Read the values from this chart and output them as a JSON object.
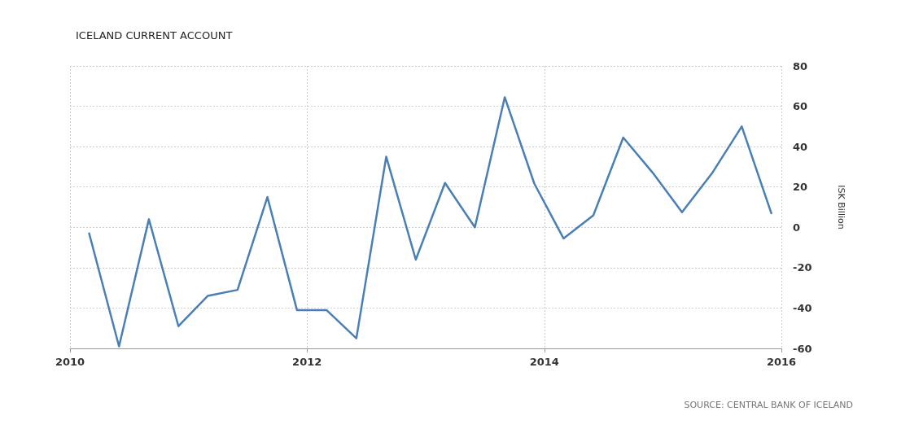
{
  "chart_data": {
    "type": "line",
    "title": "ICELAND CURRENT ACCOUNT",
    "ylabel": "ISK Billion",
    "annotations": [
      "SOURCE: CENTRAL BANK OF ICELAND"
    ],
    "x": [
      "2010-03-01",
      "2010-06-01",
      "2010-09-01",
      "2010-12-01",
      "2011-03-01",
      "2011-06-01",
      "2011-09-01",
      "2011-12-01",
      "2012-03-01",
      "2012-06-01",
      "2012-09-01",
      "2012-12-01",
      "2013-03-01",
      "2013-06-01",
      "2013-09-01",
      "2013-12-01",
      "2014-03-01",
      "2014-06-01",
      "2014-09-01",
      "2014-12-01",
      "2015-03-01",
      "2015-06-01",
      "2015-09-01",
      "2015-12-01"
    ],
    "series": [
      {
        "color": "#4a7fb5",
        "values": [
          -3,
          -59,
          4,
          -49,
          -34,
          -31,
          15,
          -41,
          -41,
          -55,
          35,
          -16,
          22,
          0,
          64.5,
          21.7,
          -5.5,
          6,
          44.5,
          27,
          7.5,
          26.7,
          50,
          7
        ]
      }
    ],
    "xlim": [
      "2010",
      "2016"
    ],
    "xticks": [
      "2010",
      "2012",
      "2014",
      "2016"
    ],
    "ylim": [
      -60,
      80
    ],
    "yticks": [
      -60,
      -40,
      -20,
      0,
      20,
      40,
      60,
      80
    ],
    "grid": true,
    "marker": "none",
    "line_style": "solid"
  }
}
